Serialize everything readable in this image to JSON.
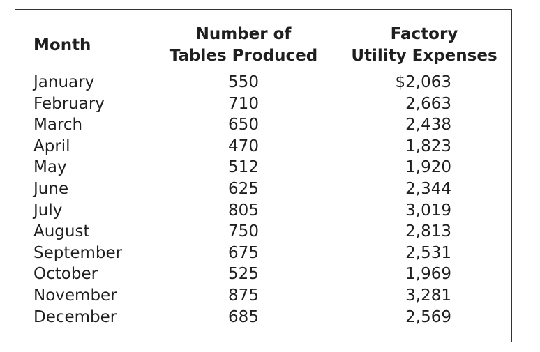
{
  "headers": {
    "month": [
      "Month"
    ],
    "tables": [
      "Number of",
      "Tables Produced"
    ],
    "utility": [
      "Factory",
      "Utility Expenses"
    ]
  },
  "rows": [
    {
      "month": "January",
      "tables": "550",
      "utility": "$2,063"
    },
    {
      "month": "February",
      "tables": "710",
      "utility": "2,663"
    },
    {
      "month": "March",
      "tables": "650",
      "utility": "2,438"
    },
    {
      "month": "April",
      "tables": "470",
      "utility": "1,823"
    },
    {
      "month": "May",
      "tables": "512",
      "utility": "1,920"
    },
    {
      "month": "June",
      "tables": "625",
      "utility": "2,344"
    },
    {
      "month": "July",
      "tables": "805",
      "utility": "3,019"
    },
    {
      "month": "August",
      "tables": "750",
      "utility": "2,813"
    },
    {
      "month": "September",
      "tables": "675",
      "utility": "2,531"
    },
    {
      "month": "October",
      "tables": "525",
      "utility": "1,969"
    },
    {
      "month": "November",
      "tables": "875",
      "utility": "3,281"
    },
    {
      "month": "December",
      "tables": "685",
      "utility": "2,569"
    }
  ]
}
